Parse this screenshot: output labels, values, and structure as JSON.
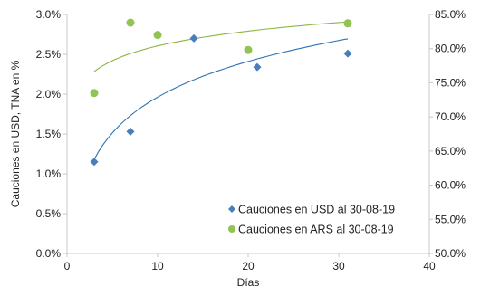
{
  "chart_data": {
    "type": "scatter",
    "xlabel": "Días",
    "ylabel_left": "Cauciones en USD, TNA en %",
    "ylabel_right": "",
    "xlim": [
      0,
      40
    ],
    "ylim_left": [
      0.0,
      3.0
    ],
    "ylim_right": [
      50.0,
      85.0
    ],
    "x_ticks": [
      "0",
      "10",
      "20",
      "30",
      "40"
    ],
    "y_left_ticks": [
      "0.0%",
      "0.5%",
      "1.0%",
      "1.5%",
      "2.0%",
      "2.5%",
      "3.0%"
    ],
    "y_right_ticks": [
      "50.0%",
      "55.0%",
      "60.0%",
      "65.0%",
      "70.0%",
      "75.0%",
      "80.0%",
      "85.0%"
    ],
    "grid": false,
    "legend_position": "bottom-right",
    "series": [
      {
        "name": "Cauciones en USD al 30-08-19",
        "axis": "left",
        "marker": "diamond",
        "color": "#4a7ebb",
        "trend_color": "#2e74b5",
        "x": [
          3,
          7,
          14,
          21,
          31
        ],
        "y": [
          1.15,
          1.53,
          2.7,
          2.34,
          2.51
        ]
      },
      {
        "name": "Cauciones en ARS al 30-08-19",
        "axis": "right",
        "marker": "circle",
        "color": "#92c353",
        "trend_color": "#8ab644",
        "x": [
          3,
          7,
          10,
          20,
          31
        ],
        "y": [
          73.5,
          83.8,
          82.0,
          79.8,
          83.7
        ]
      }
    ],
    "trendline": "logarithmic"
  }
}
